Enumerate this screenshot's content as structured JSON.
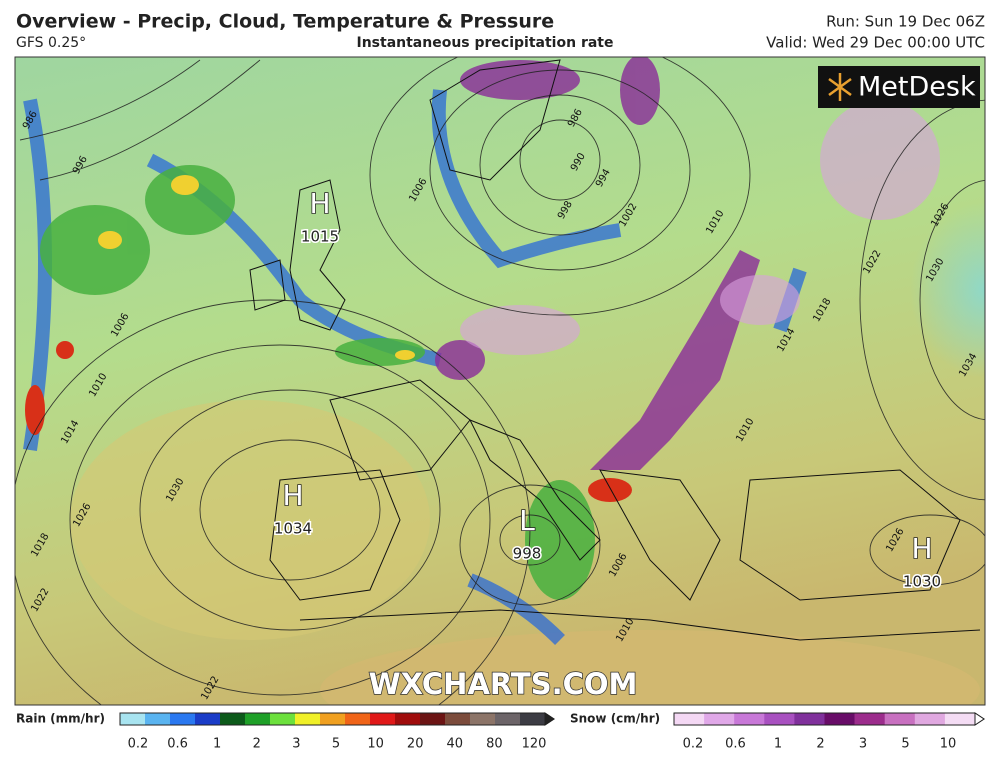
{
  "header": {
    "title": "Overview - Precip, Cloud, Temperature & Pressure",
    "model": "GFS 0.25°",
    "subtitle": "Instantaneous precipitation rate",
    "run": "Run: Sun 19 Dec 06Z",
    "valid": "Valid: Wed 29 Dec 00:00 UTC"
  },
  "logo": "MetDesk",
  "watermark": "WXCHARTS.COM",
  "pressure_centers": [
    {
      "symbol": "H",
      "value": 1015
    },
    {
      "symbol": "H",
      "value": 1034
    },
    {
      "symbol": "L",
      "value": 998
    },
    {
      "symbol": "H",
      "value": 1030
    }
  ],
  "isobar_labels": [
    986,
    990,
    994,
    998,
    1002,
    1006,
    1010,
    1006,
    1010,
    1014,
    1018,
    1022,
    1026,
    1030,
    1026,
    1030,
    1034,
    1022,
    1018,
    1014,
    1010,
    1006,
    1010,
    1022,
    1026,
    986,
    996
  ],
  "legend": {
    "rain": {
      "label": "Rain (mm/hr)",
      "colors": [
        "#a8e4f0",
        "#5ab4f0",
        "#2a78f0",
        "#1a3cc8",
        "#0c5a1a",
        "#1ea028",
        "#6ce03c",
        "#f0f028",
        "#f0a020",
        "#f06418",
        "#e01818",
        "#a00c0c",
        "#6c1414",
        "#7c4c3c",
        "#8c7468",
        "#6c6468",
        "#3c3c44"
      ],
      "ticks": [
        0.2,
        0.6,
        1,
        2,
        3,
        5,
        10,
        20,
        40,
        80,
        120
      ]
    },
    "snow": {
      "label": "Snow (cm/hr)",
      "colors": [
        "#f4d8f4",
        "#e0a8e8",
        "#c878d8",
        "#a850c0",
        "#80309c",
        "#680c68",
        "#9c2c8c",
        "#c870c0",
        "#e0a8e0",
        "#f4dcf4"
      ],
      "ticks": [
        0.2,
        0.6,
        1,
        2,
        3,
        5,
        10
      ]
    }
  }
}
